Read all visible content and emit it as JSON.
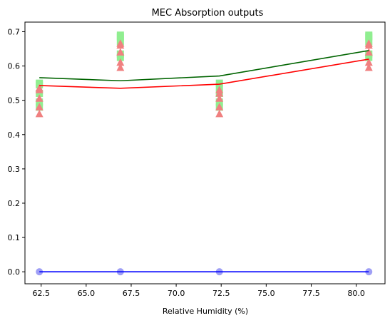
{
  "chart_data": {
    "type": "scatter",
    "title": "MEC Absorption outputs",
    "xlabel": "Relative Humidity (%)",
    "ylabel": "",
    "xlim": [
      61.6,
      81.6
    ],
    "ylim": [
      -0.035,
      0.728
    ],
    "xticks": [
      "62.5",
      "65.0",
      "67.5",
      "70.0",
      "72.5",
      "75.0",
      "77.5",
      "80.0"
    ],
    "yticks": [
      "0.0",
      "0.1",
      "0.2",
      "0.3",
      "0.4",
      "0.5",
      "0.6",
      "0.7"
    ],
    "grid": false,
    "legend": "none",
    "scatter_series": [
      {
        "color": "#90ee90",
        "marker": "square",
        "points": [
          [
            62.4,
            0.48
          ],
          [
            62.4,
            0.495
          ],
          [
            62.4,
            0.52
          ],
          [
            62.4,
            0.545
          ],
          [
            62.4,
            0.55
          ],
          [
            66.9,
            0.625
          ],
          [
            66.9,
            0.635
          ],
          [
            66.9,
            0.67
          ],
          [
            66.9,
            0.685
          ],
          [
            66.9,
            0.69
          ],
          [
            72.4,
            0.48
          ],
          [
            72.4,
            0.495
          ],
          [
            72.4,
            0.52
          ],
          [
            72.4,
            0.54
          ],
          [
            72.4,
            0.55
          ],
          [
            80.7,
            0.625
          ],
          [
            80.7,
            0.635
          ],
          [
            80.7,
            0.67
          ],
          [
            80.7,
            0.685
          ],
          [
            80.7,
            0.69
          ]
        ]
      },
      {
        "color": "#f08080",
        "marker": "triangle",
        "points": [
          [
            62.4,
            0.46
          ],
          [
            62.4,
            0.48
          ],
          [
            62.4,
            0.505
          ],
          [
            62.4,
            0.53
          ],
          [
            62.4,
            0.535
          ],
          [
            66.9,
            0.595
          ],
          [
            66.9,
            0.61
          ],
          [
            66.9,
            0.64
          ],
          [
            66.9,
            0.66
          ],
          [
            66.9,
            0.665
          ],
          [
            72.4,
            0.46
          ],
          [
            72.4,
            0.48
          ],
          [
            72.4,
            0.505
          ],
          [
            72.4,
            0.52
          ],
          [
            72.4,
            0.53
          ],
          [
            80.7,
            0.595
          ],
          [
            80.7,
            0.61
          ],
          [
            80.7,
            0.64
          ],
          [
            80.7,
            0.66
          ],
          [
            80.7,
            0.665
          ]
        ]
      },
      {
        "color": "#9f9ff5",
        "marker": "circle",
        "points": [
          [
            62.4,
            0.0
          ],
          [
            66.9,
            0.0
          ],
          [
            72.4,
            0.0
          ],
          [
            80.7,
            0.0
          ]
        ]
      }
    ],
    "line_series": [
      {
        "color": "#006400",
        "x": [
          62.4,
          66.9,
          72.4,
          80.7
        ],
        "y": [
          0.566,
          0.557,
          0.571,
          0.645
        ]
      },
      {
        "color": "#ff0000",
        "x": [
          62.4,
          66.9,
          72.4,
          80.7
        ],
        "y": [
          0.543,
          0.535,
          0.547,
          0.62
        ]
      },
      {
        "color": "#0000ff",
        "x": [
          62.4,
          66.9,
          72.4,
          80.7
        ],
        "y": [
          0.0,
          0.0,
          0.0,
          0.0
        ]
      }
    ]
  }
}
